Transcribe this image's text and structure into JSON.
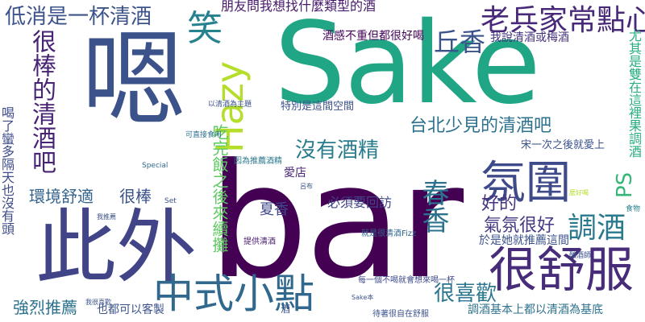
{
  "cloud": {
    "words": [
      {
        "text": "bar",
        "color": "#440154"
      },
      {
        "text": "Sake",
        "color": "#21a685"
      },
      {
        "text": "嗯",
        "color": "#3b528b"
      },
      {
        "text": "此外",
        "color": "#414487"
      },
      {
        "text": "很舒服",
        "color": "#472c7a"
      },
      {
        "text": "中式小點",
        "color": "#31688e"
      },
      {
        "text": "氛圍",
        "color": "#3e4a89"
      },
      {
        "text": "Hazy",
        "color": "#b5de2b"
      },
      {
        "text": "老兵家常點心",
        "color": "#482878"
      },
      {
        "text": "丘香",
        "color": "#3b528b"
      },
      {
        "text": "台北少見的清酒吧",
        "color": "#2c718e"
      },
      {
        "text": "很棒的清酒吧",
        "color": "#482475"
      },
      {
        "text": "低消是一杯清酒",
        "color": "#3b528b"
      },
      {
        "text": "笑",
        "color": "#26828e"
      },
      {
        "text": "沒有酒精",
        "color": "#287c8e"
      },
      {
        "text": "調酒",
        "color": "#2a788e"
      },
      {
        "text": "春香",
        "color": "#2c728e"
      },
      {
        "text": "吃完飯之後來續攤",
        "color": "#5ec962"
      },
      {
        "text": "很喜歡",
        "color": "#2a768e"
      },
      {
        "text": "強烈推薦",
        "color": "#2c718e"
      },
      {
        "text": "環境舒適",
        "color": "#33638d"
      },
      {
        "text": "很棒",
        "color": "#3b528b"
      },
      {
        "text": "夏香",
        "color": "#3f4788"
      },
      {
        "text": "氣氛很好",
        "color": "#453882"
      },
      {
        "text": "好的",
        "color": "#46337f"
      },
      {
        "text": "PS",
        "color": "#35b779"
      },
      {
        "text": "也都可以客製",
        "color": "#3b528b"
      },
      {
        "text": "必須要回訪",
        "color": "#404588"
      },
      {
        "text": "愛店",
        "color": "#482576"
      },
      {
        "text": "朋友問我想找什麼類型的酒",
        "color": "#481a6c"
      },
      {
        "text": "酒感不重但都很好喝",
        "color": "#450559"
      },
      {
        "text": "我說清酒或梅酒",
        "color": "#46327e"
      },
      {
        "text": "於是她就推薦這間",
        "color": "#3b528b"
      },
      {
        "text": "宋一次之後就愛上",
        "color": "#3b528b"
      },
      {
        "text": "尤其是雙在這裡果調酒",
        "color": "#29af7f"
      },
      {
        "text": "調酒基本上都以清酒為基底",
        "color": "#2c728e"
      },
      {
        "text": "喝了蠻多隔天也沒有頭",
        "color": "#3e4c8a"
      },
      {
        "text": "因為推薦酒精",
        "color": "#2a788e"
      },
      {
        "text": "提供清酒",
        "color": "#481d6f"
      },
      {
        "text": "就是很清酒Fizz",
        "color": "#31688e"
      },
      {
        "text": "特別是這間空間",
        "color": "#3b528b"
      },
      {
        "text": "可直接食用",
        "color": "#2c718e"
      },
      {
        "text": "待著很自在舒服",
        "color": "#3b528b"
      },
      {
        "text": "每一個不喝就會想來喝一杯",
        "color": "#3e4a89"
      },
      {
        "text": "Special",
        "color": "#31688e"
      },
      {
        "text": "Set",
        "color": "#3b528b"
      },
      {
        "text": "以清酒為主題",
        "color": "#3b528b"
      },
      {
        "text": "釀酒師",
        "color": "#3b528b"
      },
      {
        "text": "食物",
        "color": "#26828e"
      },
      {
        "text": "呂布",
        "color": "#3b528b"
      },
      {
        "text": "我推薦",
        "color": "#3b528b"
      },
      {
        "text": "Sake本",
        "color": "#3b528b"
      },
      {
        "text": "麼好喝",
        "color": "#b5de2b"
      },
      {
        "text": "我很喜歡",
        "color": "#3b528b"
      },
      {
        "text": "酒",
        "color": "#3b528b"
      }
    ]
  }
}
